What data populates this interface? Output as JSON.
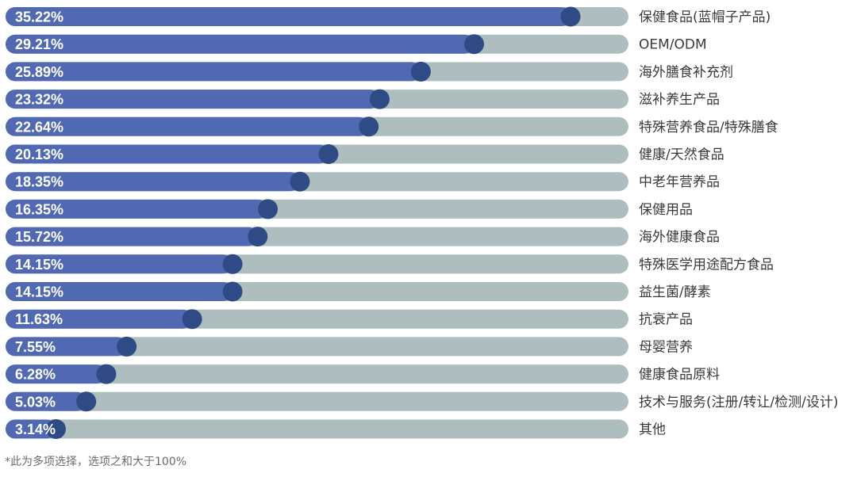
{
  "chart_data": {
    "type": "bar",
    "orientation": "horizontal",
    "categories": [
      "保健食品(蓝帽子产品)",
      "OEM/ODM",
      "海外膳食补充剂",
      "滋补养生产品",
      "特殊营养食品/特殊膳食",
      "健康/天然食品",
      "中老年营养品",
      "保健用品",
      "海外健康食品",
      "特殊医学用途配方食品",
      "益生菌/酵素",
      "抗衰产品",
      "母婴营养",
      "健康食品原料",
      "技术与服务(注册/转让/检测/设计)",
      "其他"
    ],
    "values": [
      35.22,
      29.21,
      25.89,
      23.32,
      22.64,
      20.13,
      18.35,
      16.35,
      15.72,
      14.15,
      14.15,
      11.63,
      7.55,
      6.28,
      5.03,
      3.14
    ],
    "value_labels": [
      "35.22%",
      "29.21%",
      "25.89%",
      "23.32%",
      "22.64%",
      "20.13%",
      "18.35%",
      "16.35%",
      "15.72%",
      "14.15%",
      "14.15%",
      "11.63%",
      "7.55%",
      "6.28%",
      "5.03%",
      "3.14%"
    ],
    "xlim": [
      0,
      43
    ],
    "unit": "%",
    "legend": "none",
    "grid": false
  },
  "colors": {
    "bar_fill": "#5169b3",
    "bar_track": "#aebdbe",
    "bar_knob": "#2f4b85",
    "value_text": "#ffffff",
    "category_text": "#3a3a3a"
  },
  "footnote": "*此为多项选择，选项之和大于100%"
}
